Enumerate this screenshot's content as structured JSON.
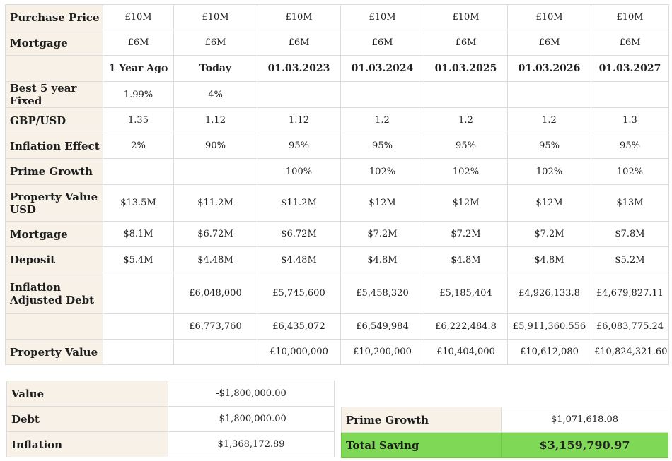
{
  "columns": [
    "1 Year Ago",
    "Today",
    "01.03.2023",
    "01.03.2024",
    "01.03.2025",
    "01.03.2026",
    "01.03.2027"
  ],
  "rows": [
    {
      "label": "Purchase Price",
      "values": [
        "£10M",
        "£10M",
        "£10M",
        "£10M",
        "£10M",
        "£10M",
        "£10M"
      ]
    },
    {
      "label": "Mortgage",
      "values": [
        "£6M",
        "£6M",
        "£6M",
        "£6M",
        "£6M",
        "£6M",
        "£6M"
      ]
    },
    {
      "label": "",
      "values": [
        "1 Year Ago",
        "Today",
        "01.03.2023",
        "01.03.2024",
        "01.03.2025",
        "01.03.2026",
        "01.03.2027"
      ],
      "header": true
    },
    {
      "label": "Best 5 year Fixed",
      "values": [
        "1.99%",
        "4%",
        "",
        "",
        "",
        "",
        ""
      ]
    },
    {
      "label": "GBP/USD",
      "values": [
        "1.35",
        "1.12",
        "1.12",
        "1.2",
        "1.2",
        "1.2",
        "1.3"
      ]
    },
    {
      "label": "Inflation Effect",
      "values": [
        "2%",
        "90%",
        "95%",
        "95%",
        "95%",
        "95%",
        "95%"
      ]
    },
    {
      "label": "Prime Growth",
      "values": [
        "",
        "",
        "100%",
        "102%",
        "102%",
        "102%",
        "102%"
      ]
    },
    {
      "label": "Property Value USD",
      "values": [
        "$13.5M",
        "$11.2M",
        "$11.2M",
        "$12M",
        "$12M",
        "$12M",
        "$13M"
      ],
      "tall": true
    },
    {
      "label": "Mortgage",
      "values": [
        "$8.1M",
        "$6.72M",
        "$6.72M",
        "$7.2M",
        "$7.2M",
        "$7.2M",
        "$7.8M"
      ]
    },
    {
      "label": "Deposit",
      "values": [
        "$5.4M",
        "$4.48M",
        "$4.48M",
        "$4.8M",
        "$4.8M",
        "$4.8M",
        "$5.2M"
      ]
    },
    {
      "label": "Inflation Adjusted Debt",
      "values": [
        "",
        "£6,048,000",
        "£5,745,600",
        "£5,458,320",
        "£5,185,404",
        "£4,926,133.8",
        "£4,679,827.11"
      ],
      "tall": true
    },
    {
      "label": "",
      "values": [
        "",
        "£6,773,760",
        "£6,435,072",
        "£6,549,984",
        "£6,222,484.8",
        "£5,911,360.556",
        "£6,083,775.24"
      ]
    },
    {
      "label": "Property Value",
      "values": [
        "",
        "",
        "£10,000,000",
        "£10,200,000",
        "£10,404,000",
        "£10,612,080",
        "£10,824,321.60"
      ]
    }
  ],
  "summary_left": [
    {
      "label": "Value",
      "value": "-$1,800,000.00"
    },
    {
      "label": "Debt",
      "value": "-$1,800,000.00"
    },
    {
      "label": "Inflation",
      "value": "$1,368,172.89"
    }
  ],
  "summary_right": [
    {
      "label": "Prime Growth",
      "value": "$1,071,618.08"
    },
    {
      "label": "Total Saving",
      "value": "$3,159,790.97"
    }
  ],
  "colors": {
    "label_bg": "#f7f1e8",
    "total_bg": "#7fd957"
  }
}
